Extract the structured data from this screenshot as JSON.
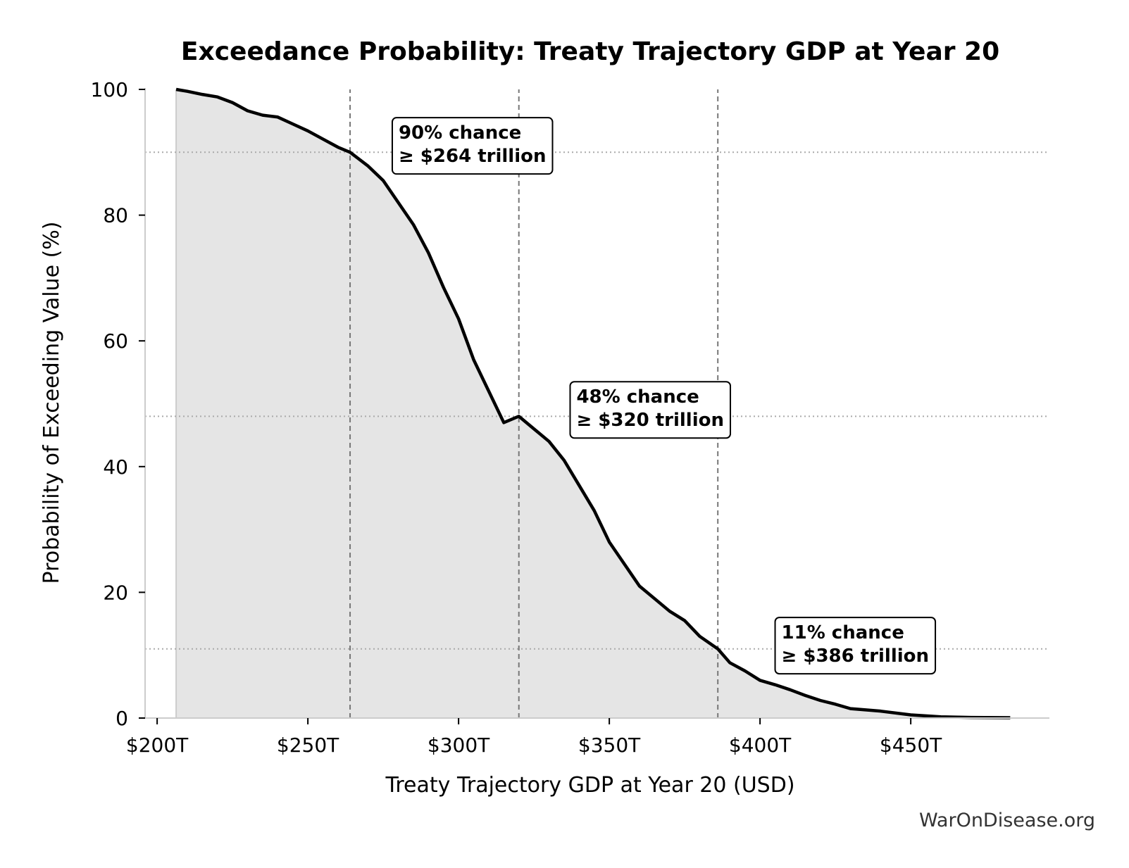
{
  "chart_data": {
    "type": "area",
    "title": "Exceedance Probability: Treaty Trajectory GDP at Year 20",
    "xlabel": "Treaty Trajectory GDP at Year 20 (USD)",
    "ylabel": "Probability of Exceeding Value (%)",
    "xlim": [
      196,
      496
    ],
    "ylim": [
      0,
      100
    ],
    "x_ticks": [
      {
        "value": 200,
        "label": "$200T"
      },
      {
        "value": 250,
        "label": "$250T"
      },
      {
        "value": 300,
        "label": "$300T"
      },
      {
        "value": 350,
        "label": "$350T"
      },
      {
        "value": 400,
        "label": "$400T"
      },
      {
        "value": 450,
        "label": "$450T"
      }
    ],
    "y_ticks": [
      {
        "value": 0,
        "label": "0"
      },
      {
        "value": 20,
        "label": "20"
      },
      {
        "value": 40,
        "label": "40"
      },
      {
        "value": 60,
        "label": "60"
      },
      {
        "value": 80,
        "label": "80"
      },
      {
        "value": 100,
        "label": "100"
      }
    ],
    "grid": false,
    "curve": {
      "x": [
        206.3,
        210,
        215,
        220,
        225,
        230,
        235,
        240,
        245,
        250,
        255,
        260,
        264,
        270,
        275,
        280,
        285,
        290,
        295,
        300,
        305,
        310,
        315,
        320,
        325,
        330,
        335,
        340,
        345,
        350,
        355,
        360,
        365,
        370,
        375,
        380,
        386,
        390,
        395,
        400,
        405,
        410,
        415,
        420,
        425,
        430,
        440,
        450,
        460,
        470,
        483
      ],
      "y": [
        100,
        99.7,
        99.2,
        98.8,
        97.9,
        96.6,
        95.9,
        95.6,
        94.5,
        93.4,
        92.1,
        90.8,
        90,
        87.8,
        85.5,
        82,
        78.5,
        74,
        68.5,
        63.5,
        57,
        52,
        47,
        48,
        46,
        44,
        41,
        37,
        33,
        28,
        24.5,
        21,
        19,
        17,
        15.5,
        13,
        11,
        8.8,
        7.5,
        6,
        5.3,
        4.5,
        3.6,
        2.8,
        2.2,
        1.5,
        1.1,
        0.5,
        0.2,
        0.1,
        0.05
      ],
      "color": "#000000",
      "fill_color": "#e5e5e5"
    },
    "thresholds": [
      {
        "x": 264,
        "y": 90,
        "label_line1": "90% chance",
        "label_line2": "≥ $264 trillion"
      },
      {
        "x": 320,
        "y": 48,
        "label_line1": "48% chance",
        "label_line2": "≥ $320 trillion"
      },
      {
        "x": 386,
        "y": 11,
        "label_line1": "11% chance",
        "label_line2": "≥ $386 trillion"
      }
    ],
    "annotation_anchors": [
      {
        "x": 278,
        "y": 95.5
      },
      {
        "x": 337,
        "y": 53.5
      },
      {
        "x": 405,
        "y": 16
      }
    ],
    "watermark": "WarOnDisease.org"
  }
}
